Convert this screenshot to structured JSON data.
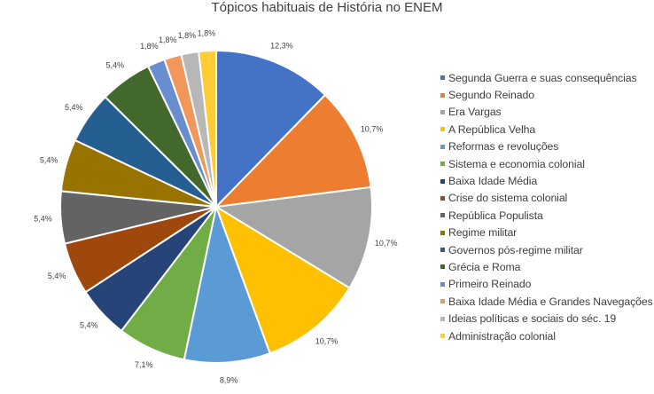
{
  "chart_data": {
    "type": "pie",
    "title": "Tópicos habituais de História no ENEM",
    "start_angle_deg": 0,
    "direction": "clockwise",
    "legend_position": "right",
    "slices": [
      {
        "name": "Segunda Guerra e suas consequências",
        "value": 12.3,
        "label": "12,3%",
        "color": "#4472C4"
      },
      {
        "name": "Segundo Reinado",
        "value": 10.7,
        "label": "10,7%",
        "color": "#ED7D31"
      },
      {
        "name": "Era Vargas",
        "value": 10.7,
        "label": "10,7%",
        "color": "#A5A5A5"
      },
      {
        "name": "A República Velha",
        "value": 10.7,
        "label": "10,7%",
        "color": "#FFC000"
      },
      {
        "name": "Reformas e revoluções",
        "value": 8.9,
        "label": "8,9%",
        "color": "#5B9BD5"
      },
      {
        "name": "Sistema e economia colonial",
        "value": 7.1,
        "label": "7,1%",
        "color": "#70AD47"
      },
      {
        "name": "Baixa Idade Média",
        "value": 5.4,
        "label": "5,4%",
        "color": "#264478"
      },
      {
        "name": "Crise do sistema colonial",
        "value": 5.4,
        "label": "5,4%",
        "color": "#9E480E"
      },
      {
        "name": "República Populista",
        "value": 5.4,
        "label": "5,4%",
        "color": "#636363"
      },
      {
        "name": "Regime militar",
        "value": 5.4,
        "label": "5,4%",
        "color": "#997300"
      },
      {
        "name": "Governos pós-regime militar",
        "value": 5.4,
        "label": "5,4%",
        "color": "#255E91"
      },
      {
        "name": "Grécia e Roma",
        "value": 5.4,
        "label": "5,4%",
        "color": "#43682B"
      },
      {
        "name": "Primeiro Reinado",
        "value": 1.8,
        "label": "1,8%",
        "color": "#698ED0"
      },
      {
        "name": "Baixa Idade Média e Grandes Navegações",
        "value": 1.8,
        "label": "1,8%",
        "color": "#F1975A"
      },
      {
        "name": "Ideias políticas e sociais do séc. 19",
        "value": 1.8,
        "label": "1,8%",
        "color": "#B7B7B7"
      },
      {
        "name": "Administração colonial",
        "value": 1.8,
        "label": "1,8%",
        "color": "#FFCD33"
      }
    ]
  }
}
